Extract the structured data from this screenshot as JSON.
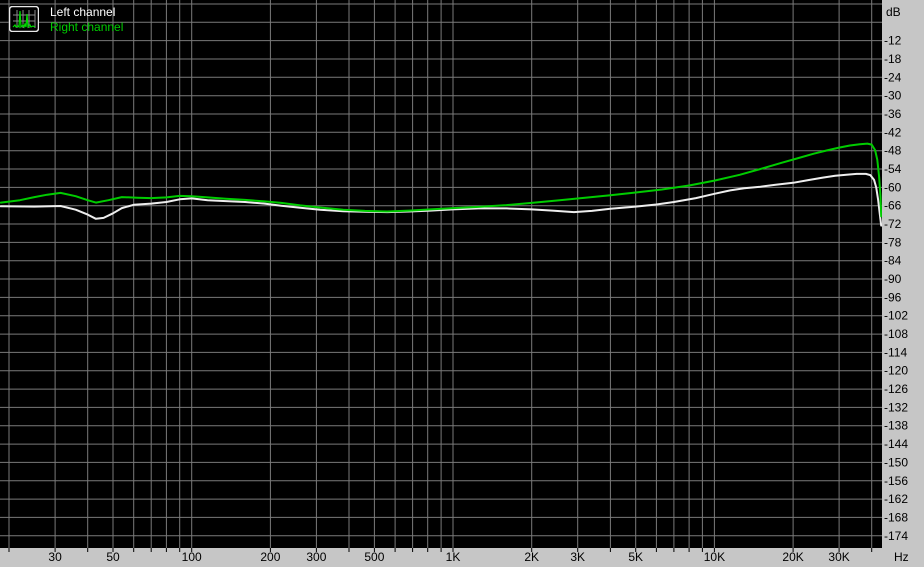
{
  "window": {
    "background": "#000000"
  },
  "icon": {
    "name": "spectrum-thumbnail"
  },
  "legend": {
    "items": [
      {
        "label": "Left channel",
        "color": "#ffffff"
      },
      {
        "label": "Right channel",
        "color": "#00cc00"
      }
    ]
  },
  "colors": {
    "background": "#000000",
    "grid": "#7a7a7a",
    "axis_strip": "#c6c6c6",
    "axis_text": "#000000",
    "left_channel": "#eeeeee",
    "right_channel": "#00cc00"
  },
  "chart_data": {
    "type": "line",
    "title": "",
    "xlabel": "Hz",
    "ylabel": "dB",
    "x_scale": "log",
    "x_unit": "Hz",
    "y_unit": "dB",
    "x_range": [
      18.47,
      43790
    ],
    "y_range": [
      -178,
      1.3
    ],
    "grid": {
      "on": true,
      "x_values": [
        20,
        30,
        40,
        50,
        60,
        70,
        80,
        90,
        100,
        200,
        300,
        400,
        500,
        600,
        700,
        800,
        900,
        1000,
        2000,
        3000,
        4000,
        5000,
        6000,
        7000,
        8000,
        9000,
        10000,
        20000,
        30000,
        40000
      ],
      "y_values": [
        0,
        -6,
        -12,
        -18,
        -24,
        -30,
        -36,
        -42,
        -48,
        -54,
        -60,
        -66,
        -72,
        -78,
        -84,
        -90,
        -96,
        -102,
        -108,
        -114,
        -120,
        -126,
        -132,
        -138,
        -144,
        -150,
        -156,
        -162,
        -168,
        -174
      ]
    },
    "x_ticks": [
      {
        "label": "30",
        "value": 30
      },
      {
        "label": "50",
        "value": 50
      },
      {
        "label": "100",
        "value": 100
      },
      {
        "label": "200",
        "value": 200
      },
      {
        "label": "300",
        "value": 300
      },
      {
        "label": "500",
        "value": 500
      },
      {
        "label": "1K",
        "value": 1000
      },
      {
        "label": "2K",
        "value": 2000
      },
      {
        "label": "3K",
        "value": 3000
      },
      {
        "label": "5K",
        "value": 5000
      },
      {
        "label": "10K",
        "value": 10000
      },
      {
        "label": "20K",
        "value": 20000
      },
      {
        "label": "30K",
        "value": 30000
      }
    ],
    "y_ticks": [
      -12,
      -18,
      -24,
      -30,
      -36,
      -42,
      -48,
      -54,
      -60,
      -66,
      -72,
      -78,
      -84,
      -90,
      -96,
      -102,
      -108,
      -114,
      -120,
      -126,
      -132,
      -138,
      -144,
      -150,
      -156,
      -162,
      -168,
      -174
    ],
    "legend_position": "top-left",
    "series": [
      {
        "name": "Left channel",
        "color": "#eeeeee",
        "points": [
          [
            18.6,
            -66.2
          ],
          [
            25,
            -66.3
          ],
          [
            31.5,
            -66.1
          ],
          [
            36,
            -67.3
          ],
          [
            40,
            -68.9
          ],
          [
            43,
            -70.3
          ],
          [
            46,
            -70.0
          ],
          [
            50,
            -68.5
          ],
          [
            54,
            -66.8
          ],
          [
            60,
            -65.7
          ],
          [
            70,
            -65.3
          ],
          [
            80,
            -64.8
          ],
          [
            90,
            -63.9
          ],
          [
            100,
            -63.6
          ],
          [
            115,
            -64.2
          ],
          [
            135,
            -64.5
          ],
          [
            160,
            -64.8
          ],
          [
            190,
            -65.3
          ],
          [
            220,
            -66.0
          ],
          [
            260,
            -66.7
          ],
          [
            310,
            -67.3
          ],
          [
            380,
            -67.8
          ],
          [
            460,
            -68.0
          ],
          [
            560,
            -68.1
          ],
          [
            680,
            -67.9
          ],
          [
            820,
            -67.6
          ],
          [
            1000,
            -67.2
          ],
          [
            1250,
            -66.9
          ],
          [
            1600,
            -66.9
          ],
          [
            2000,
            -67.2
          ],
          [
            2400,
            -67.6
          ],
          [
            2900,
            -68.1
          ],
          [
            3400,
            -67.7
          ],
          [
            4000,
            -67.0
          ],
          [
            5000,
            -66.3
          ],
          [
            6000,
            -65.6
          ],
          [
            7000,
            -64.8
          ],
          [
            8500,
            -63.5
          ],
          [
            10000,
            -62.1
          ],
          [
            11500,
            -61.0
          ],
          [
            13000,
            -60.3
          ],
          [
            15000,
            -59.8
          ],
          [
            17000,
            -59.2
          ],
          [
            20000,
            -58.5
          ],
          [
            23000,
            -57.6
          ],
          [
            26000,
            -56.8
          ],
          [
            29000,
            -56.2
          ],
          [
            32000,
            -55.9
          ],
          [
            35000,
            -55.6
          ],
          [
            38000,
            -55.6
          ],
          [
            39500,
            -56.0
          ],
          [
            40800,
            -57.5
          ],
          [
            41600,
            -60.0
          ],
          [
            42300,
            -64.0
          ],
          [
            43000,
            -69.0
          ],
          [
            43500,
            -72.5
          ]
        ]
      },
      {
        "name": "Right channel",
        "color": "#00cc00",
        "points": [
          [
            18.6,
            -65.0
          ],
          [
            22,
            -64.2
          ],
          [
            25,
            -63.2
          ],
          [
            28,
            -62.4
          ],
          [
            31.5,
            -61.8
          ],
          [
            36,
            -62.9
          ],
          [
            40,
            -64.2
          ],
          [
            43,
            -65.0
          ],
          [
            48,
            -64.2
          ],
          [
            54,
            -63.2
          ],
          [
            62,
            -63.4
          ],
          [
            70,
            -63.5
          ],
          [
            80,
            -63.3
          ],
          [
            90,
            -62.8
          ],
          [
            100,
            -62.9
          ],
          [
            115,
            -63.3
          ],
          [
            135,
            -63.7
          ],
          [
            160,
            -64.1
          ],
          [
            190,
            -64.6
          ],
          [
            220,
            -65.1
          ],
          [
            260,
            -65.9
          ],
          [
            310,
            -66.6
          ],
          [
            380,
            -67.3
          ],
          [
            460,
            -67.7
          ],
          [
            560,
            -67.9
          ],
          [
            680,
            -67.6
          ],
          [
            820,
            -67.2
          ],
          [
            1000,
            -66.8
          ],
          [
            1250,
            -66.4
          ],
          [
            1600,
            -65.8
          ],
          [
            2000,
            -65.1
          ],
          [
            2500,
            -64.3
          ],
          [
            3200,
            -63.4
          ],
          [
            4000,
            -62.6
          ],
          [
            5000,
            -61.7
          ],
          [
            6300,
            -60.7
          ],
          [
            8000,
            -59.4
          ],
          [
            10000,
            -57.8
          ],
          [
            12500,
            -55.9
          ],
          [
            15000,
            -54.0
          ],
          [
            18000,
            -52.0
          ],
          [
            21000,
            -50.4
          ],
          [
            24000,
            -49.0
          ],
          [
            27000,
            -47.9
          ],
          [
            30000,
            -47.0
          ],
          [
            33000,
            -46.3
          ],
          [
            36000,
            -45.9
          ],
          [
            38500,
            -45.7
          ],
          [
            40000,
            -46.0
          ],
          [
            41200,
            -47.8
          ],
          [
            42000,
            -51.0
          ],
          [
            42700,
            -56.5
          ],
          [
            43200,
            -63.0
          ],
          [
            43500,
            -69.5
          ]
        ]
      }
    ]
  }
}
